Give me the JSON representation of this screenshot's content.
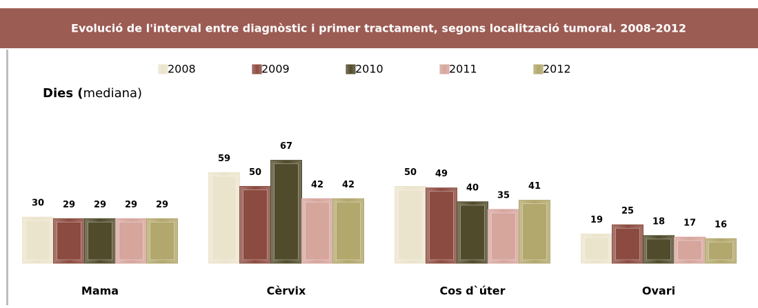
{
  "chart_data": {
    "type": "bar",
    "title": "Evolució de l'interval entre diagnòstic i primer tractament, segons localització  tumoral. 2008-2012",
    "y_label": {
      "bold": "Dies (",
      "normal": "mediana)"
    },
    "categories": [
      "Mama",
      "Cèrvix",
      "Cos d`úter",
      "Ovari"
    ],
    "series": [
      {
        "name": "2008",
        "color": "#ebe4cc",
        "values": [
          30,
          59,
          50,
          19
        ]
      },
      {
        "name": "2009",
        "color": "#8c4b40",
        "values": [
          29,
          50,
          49,
          25
        ]
      },
      {
        "name": "2010",
        "color": "#504b2b",
        "values": [
          29,
          67,
          40,
          18
        ]
      },
      {
        "name": "2011",
        "color": "#d6a59c",
        "values": [
          29,
          42,
          35,
          17
        ]
      },
      {
        "name": "2012",
        "color": "#b2a76c",
        "values": [
          29,
          42,
          41,
          16
        ]
      }
    ],
    "ylim": [
      0,
      100
    ],
    "grid": false
  }
}
